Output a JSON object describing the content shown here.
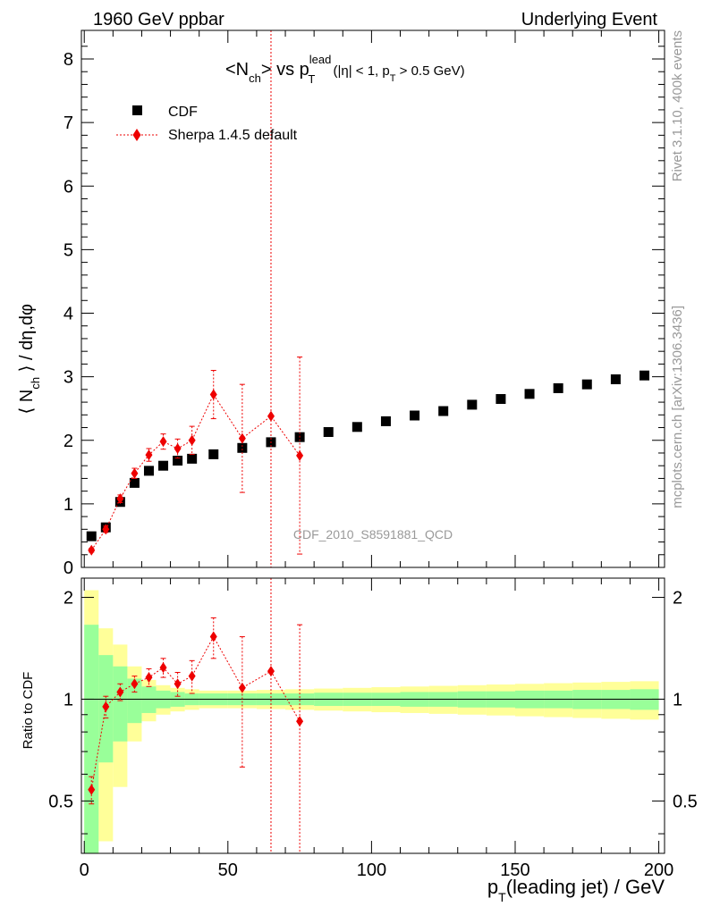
{
  "header": {
    "left": "1960 GeV ppbar",
    "right": "Underlying Event"
  },
  "side": {
    "rivet": "Rivet 3.1.10,  400k events",
    "mcplots": "mcplots.cern.ch [arXiv:1306.3436]"
  },
  "plot_title": {
    "part1": "<N",
    "sub1": "ch",
    "part2": "> vs p",
    "sup2": "lead",
    "sub2": "T",
    "part3": " (|η| < 1, p",
    "sub3": "T",
    "part4": " > 0.5 GeV)"
  },
  "watermark": "CDF_2010_S8591881_QCD",
  "legend": {
    "data_label": "CDF",
    "mc_label": "Sherpa 1.4.5 default"
  },
  "colors": {
    "data": "#000000",
    "mc": "#ee0000",
    "band_inner": "#99ff99",
    "band_outer": "#ffff99",
    "grey_text": "#999999"
  },
  "chart_data": [
    {
      "type": "scatter",
      "panel": "main",
      "ylabel": {
        "pre": "⟨ N",
        "sub": "ch",
        "post": " ⟩ / dη,dφ"
      },
      "xlim": [
        -1,
        202
      ],
      "ylim": [
        0,
        8.45
      ],
      "yticks": [
        0,
        1,
        2,
        3,
        4,
        5,
        6,
        7,
        8
      ],
      "x": [
        2.5,
        7.5,
        12.5,
        17.5,
        22.5,
        27.5,
        32.5,
        37.5,
        45,
        55,
        65,
        75,
        85,
        95,
        105,
        115,
        125,
        135,
        145,
        155,
        165,
        175,
        185,
        195
      ],
      "series": [
        {
          "name": "CDF",
          "marker": "square",
          "values": [
            0.49,
            0.63,
            1.03,
            1.33,
            1.52,
            1.6,
            1.68,
            1.71,
            1.78,
            1.88,
            1.97,
            2.05,
            2.13,
            2.21,
            2.3,
            2.39,
            2.46,
            2.56,
            2.65,
            2.73,
            2.82,
            2.88,
            2.96,
            3.02
          ]
        },
        {
          "name": "Sherpa 1.4.5 default",
          "marker": "diamond",
          "line": "dotted",
          "x": [
            2.5,
            7.5,
            12.5,
            17.5,
            22.5,
            27.5,
            32.5,
            37.5,
            45,
            55,
            65,
            75
          ],
          "values": [
            0.27,
            0.6,
            1.08,
            1.48,
            1.77,
            1.98,
            1.87,
            2.0,
            2.72,
            2.03,
            2.38,
            1.76
          ],
          "err": [
            0.03,
            0.05,
            0.06,
            0.08,
            0.1,
            0.12,
            0.15,
            0.22,
            0.38,
            0.85,
            6.5,
            1.55
          ]
        }
      ]
    },
    {
      "type": "scatter",
      "panel": "ratio",
      "ylabel": "Ratio to CDF",
      "xlabel": {
        "pre": "p",
        "sub": "T",
        "post": "(leading jet) / GeV"
      },
      "xlim": [
        -1,
        202
      ],
      "ylim": [
        0.35,
        2.28
      ],
      "yticks": [
        0.5,
        1,
        2
      ],
      "xticks": [
        0,
        50,
        100,
        150,
        200
      ],
      "reference": 1,
      "bands": {
        "edges": [
          0,
          5,
          10,
          15,
          20,
          25,
          30,
          35,
          40,
          50,
          60,
          70,
          80,
          90,
          100,
          110,
          120,
          130,
          140,
          150,
          160,
          170,
          180,
          190,
          200
        ],
        "inner": [
          0.66,
          0.35,
          0.25,
          0.15,
          0.09,
          0.06,
          0.05,
          0.04,
          0.04,
          0.04,
          0.04,
          0.04,
          0.045,
          0.045,
          0.045,
          0.05,
          0.05,
          0.055,
          0.055,
          0.06,
          0.06,
          0.065,
          0.065,
          0.07
        ],
        "outer": [
          1.1,
          0.62,
          0.45,
          0.25,
          0.14,
          0.1,
          0.08,
          0.07,
          0.06,
          0.06,
          0.065,
          0.07,
          0.075,
          0.08,
          0.085,
          0.09,
          0.095,
          0.1,
          0.105,
          0.11,
          0.115,
          0.12,
          0.125,
          0.13
        ]
      },
      "series": [
        {
          "name": "Sherpa 1.4.5 default",
          "marker": "diamond",
          "line": "dotted",
          "x": [
            2.5,
            7.5,
            12.5,
            17.5,
            22.5,
            27.5,
            32.5,
            37.5,
            45,
            55,
            65,
            75
          ],
          "values": [
            0.54,
            0.95,
            1.05,
            1.11,
            1.16,
            1.24,
            1.11,
            1.17,
            1.53,
            1.08,
            1.21,
            0.86
          ],
          "err": [
            0.05,
            0.07,
            0.06,
            0.06,
            0.07,
            0.08,
            0.09,
            0.13,
            0.21,
            0.45,
            3.3,
            0.8
          ]
        }
      ]
    }
  ]
}
